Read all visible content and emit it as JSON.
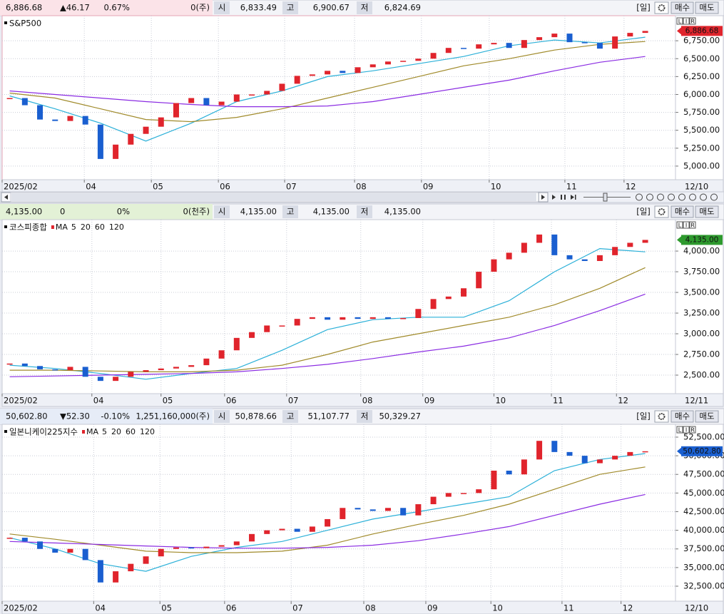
{
  "chart_data": [
    {
      "type": "candlestick",
      "title": "S&P500",
      "header": {
        "price": "6,886.68",
        "change": "▲46.17",
        "change_pct": "0.67%",
        "volume": "0(주)",
        "open_label": "시",
        "open": "6,833.49",
        "high_label": "고",
        "high": "6,900.67",
        "low_label": "저",
        "low": "6,824.69",
        "period": "[일]",
        "buy": "매수",
        "sell": "매도"
      },
      "quote_color": "#e0242c",
      "quote_background": "#fbe3e8",
      "current_background": "#e0242c",
      "scale_buttons": [
        "L",
        "I",
        "R"
      ],
      "end_date": "12/10",
      "up_color": "#e0242c",
      "down_color": "#1a5fd0",
      "closes": [
        5950,
        5850,
        5650,
        5630,
        5700,
        5580,
        5100,
        5300,
        5450,
        5550,
        5680,
        5880,
        5950,
        5850,
        5900,
        6000,
        6000,
        6050,
        6150,
        6260,
        6280,
        6330,
        6300,
        6380,
        6420,
        6460,
        6470,
        6500,
        6580,
        6650,
        6640,
        6700,
        6720,
        6650,
        6760,
        6800,
        6850,
        6730,
        6720,
        6640,
        6810,
        6860,
        6887
      ],
      "series": [
        {
          "color": "#2bb0d8",
          "x": [
            0,
            3,
            6,
            9,
            12,
            15,
            18,
            21,
            24,
            27,
            30,
            33,
            36,
            39,
            42
          ],
          "values": [
            5980,
            5800,
            5600,
            5350,
            5600,
            5900,
            6050,
            6250,
            6330,
            6430,
            6530,
            6680,
            6760,
            6720,
            6800
          ]
        },
        {
          "color": "#a08a2a",
          "x": [
            0,
            3,
            6,
            9,
            12,
            15,
            18,
            21,
            24,
            27,
            30,
            33,
            36,
            39,
            42
          ],
          "values": [
            6020,
            5950,
            5800,
            5650,
            5620,
            5680,
            5800,
            5950,
            6100,
            6250,
            6400,
            6500,
            6620,
            6700,
            6740
          ]
        },
        {
          "color": "#8a2be2",
          "x": [
            0,
            3,
            6,
            9,
            12,
            15,
            18,
            21,
            24,
            27,
            30,
            33,
            36,
            39,
            42
          ],
          "values": [
            6050,
            6000,
            5950,
            5900,
            5860,
            5830,
            5830,
            5840,
            5900,
            6000,
            6100,
            6200,
            6330,
            6450,
            6530
          ]
        }
      ],
      "xlim": [
        -0.5,
        44
      ],
      "xticks": [
        {
          "value": -0.5,
          "label": "2025/02"
        },
        {
          "value": 4.93,
          "label": "04"
        },
        {
          "value": 9.36,
          "label": "05"
        },
        {
          "value": 13.79,
          "label": "06"
        },
        {
          "value": 18.17,
          "label": "07"
        },
        {
          "value": 22.79,
          "label": "08"
        },
        {
          "value": 27.21,
          "label": "09"
        },
        {
          "value": 31.69,
          "label": "10"
        },
        {
          "value": 36.69,
          "label": "11"
        },
        {
          "value": 40.6,
          "label": "12"
        }
      ],
      "ylim": [
        4810,
        7100
      ],
      "yticks": [
        {
          "value": 5000,
          "label": "5,000.00"
        },
        {
          "value": 5250,
          "label": "5,250.00"
        },
        {
          "value": 5500,
          "label": "5,500.00"
        },
        {
          "value": 5750,
          "label": "5,750.00"
        },
        {
          "value": 6000,
          "label": "6,000.00"
        },
        {
          "value": 6250,
          "label": "6,250.00"
        },
        {
          "value": 6500,
          "label": "6,500.00"
        },
        {
          "value": 6750,
          "label": "6,750.00"
        }
      ],
      "grid": true
    },
    {
      "type": "candlestick",
      "title": "코스피종합",
      "header": {
        "price": "4,135.00",
        "change": "0",
        "change_pct": "0%",
        "volume": "0(천주)",
        "open_label": "시",
        "open": "4,135.00",
        "high_label": "고",
        "high": "4,135.00",
        "low_label": "저",
        "low": "4,135.00",
        "period": "[일]",
        "buy": "매수",
        "sell": "매도"
      },
      "quote_color": "#111111",
      "quote_background": "#e3f1d6",
      "current_background": "#2e9a2e",
      "scale_buttons": [
        "L",
        "I",
        "R"
      ],
      "end_date": "12/11",
      "legend_label": "MA",
      "up_color": "#e0242c",
      "down_color": "#1a5fd0",
      "closes": [
        2640,
        2610,
        2570,
        2560,
        2600,
        2480,
        2430,
        2480,
        2540,
        2560,
        2580,
        2600,
        2620,
        2700,
        2800,
        2950,
        3020,
        3100,
        3100,
        3180,
        3200,
        3170,
        3200,
        3180,
        3200,
        3180,
        3190,
        3300,
        3420,
        3450,
        3550,
        3750,
        3900,
        3980,
        4100,
        4200,
        3950,
        3900,
        3880,
        3950,
        4050,
        4100,
        4135
      ],
      "series": [
        {
          "name": "5",
          "color": "#e0242c"
        },
        {
          "name": "20",
          "color": "#2bb0d8",
          "x": [
            0,
            3,
            6,
            9,
            12,
            15,
            18,
            21,
            24,
            27,
            30,
            33,
            36,
            39,
            42
          ],
          "values": [
            2620,
            2580,
            2520,
            2450,
            2520,
            2580,
            2800,
            3050,
            3170,
            3200,
            3200,
            3400,
            3750,
            4030,
            3990
          ]
        },
        {
          "name": "60",
          "color": "#a08a2a",
          "x": [
            0,
            3,
            6,
            9,
            12,
            15,
            18,
            21,
            24,
            27,
            30,
            33,
            36,
            39,
            42
          ],
          "values": [
            2560,
            2560,
            2550,
            2540,
            2540,
            2560,
            2620,
            2750,
            2900,
            3000,
            3100,
            3200,
            3350,
            3550,
            3800
          ]
        },
        {
          "name": "120",
          "color": "#8a2be2",
          "x": [
            0,
            3,
            6,
            9,
            12,
            15,
            18,
            21,
            24,
            27,
            30,
            33,
            36,
            39,
            42
          ],
          "values": [
            2480,
            2490,
            2500,
            2510,
            2520,
            2540,
            2580,
            2630,
            2700,
            2780,
            2850,
            2950,
            3100,
            3280,
            3480
          ]
        }
      ],
      "xlim": [
        -0.5,
        44
      ],
      "xticks": [
        {
          "value": -0.5,
          "label": "2025/02"
        },
        {
          "value": 5.43,
          "label": "04"
        },
        {
          "value": 10.0,
          "label": "05"
        },
        {
          "value": 14.2,
          "label": "06"
        },
        {
          "value": 18.3,
          "label": "07"
        },
        {
          "value": 23.2,
          "label": "08"
        },
        {
          "value": 27.3,
          "label": "09"
        },
        {
          "value": 32.0,
          "label": "10"
        },
        {
          "value": 35.8,
          "label": "11"
        },
        {
          "value": 40.1,
          "label": "12"
        }
      ],
      "ylim": [
        2276,
        4380
      ],
      "yticks": [
        {
          "value": 2500,
          "label": "2,500.00"
        },
        {
          "value": 2750,
          "label": "2,750.00"
        },
        {
          "value": 3000,
          "label": "3,000.00"
        },
        {
          "value": 3250,
          "label": "3,250.00"
        },
        {
          "value": 3500,
          "label": "3,500.00"
        },
        {
          "value": 3750,
          "label": "3,750.00"
        },
        {
          "value": 4000,
          "label": "4,000.00"
        }
      ],
      "grid": true
    },
    {
      "type": "candlestick",
      "title": "일본니케이225지수",
      "header": {
        "price": "50,602.80",
        "change": "▼52.30",
        "change_pct": "-0.10%",
        "volume": "1,251,160,000(주)",
        "open_label": "시",
        "open": "50,878.66",
        "high_label": "고",
        "high": "51,107.77",
        "low_label": "저",
        "low": "50,329.27",
        "period": "[일]",
        "buy": "매수",
        "sell": "매도"
      },
      "quote_color": "#1a5fd0",
      "quote_background": "#e6ecf7",
      "current_background": "#1a5fd0",
      "scale_buttons": [
        "L",
        "I",
        "R"
      ],
      "end_date": "12/10",
      "legend_label": "MA",
      "up_color": "#e0242c",
      "down_color": "#1a5fd0",
      "closes": [
        39000,
        38500,
        37500,
        37000,
        37500,
        36000,
        33000,
        34500,
        35500,
        36500,
        37500,
        37700,
        37600,
        37800,
        38000,
        38500,
        39500,
        40000,
        40200,
        39800,
        40500,
        41500,
        43000,
        42800,
        42600,
        43000,
        42000,
        43500,
        44500,
        45000,
        45000,
        45500,
        48000,
        47500,
        49500,
        52000,
        50500,
        50000,
        49000,
        49500,
        50000,
        50500,
        50603
      ],
      "series": [
        {
          "name": "5",
          "color": "#e0242c"
        },
        {
          "name": "20",
          "color": "#2bb0d8",
          "x": [
            0,
            3,
            6,
            9,
            12,
            15,
            18,
            21,
            24,
            27,
            30,
            33,
            36,
            39,
            42
          ],
          "values": [
            39000,
            37500,
            35500,
            34500,
            36500,
            37700,
            38500,
            40000,
            41500,
            42500,
            43500,
            44500,
            48000,
            49500,
            50300
          ]
        },
        {
          "name": "60",
          "color": "#a08a2a",
          "x": [
            0,
            3,
            6,
            9,
            12,
            15,
            18,
            21,
            24,
            27,
            30,
            33,
            36,
            39,
            42
          ],
          "values": [
            39500,
            38800,
            38000,
            37200,
            37000,
            37000,
            37200,
            38000,
            39500,
            40800,
            42000,
            43500,
            45500,
            47500,
            48500
          ]
        },
        {
          "name": "120",
          "color": "#8a2be2",
          "x": [
            0,
            3,
            6,
            9,
            12,
            15,
            18,
            21,
            24,
            27,
            30,
            33,
            36,
            39,
            42
          ],
          "values": [
            38500,
            38300,
            38100,
            37900,
            37700,
            37600,
            37600,
            37700,
            38000,
            38600,
            39500,
            40500,
            42000,
            43500,
            44800
          ]
        }
      ],
      "xlim": [
        -0.5,
        44
      ],
      "xticks": [
        {
          "value": -0.5,
          "label": "2025/02"
        },
        {
          "value": 5.55,
          "label": "04"
        },
        {
          "value": 9.93,
          "label": "05"
        },
        {
          "value": 14.2,
          "label": "06"
        },
        {
          "value": 18.6,
          "label": "07"
        },
        {
          "value": 23.4,
          "label": "08"
        },
        {
          "value": 27.5,
          "label": "09"
        },
        {
          "value": 31.8,
          "label": "10"
        },
        {
          "value": 36.5,
          "label": "11"
        },
        {
          "value": 40.4,
          "label": "12"
        }
      ],
      "ylim": [
        30490,
        54220
      ],
      "yticks": [
        {
          "value": 32500,
          "label": "32,500.00"
        },
        {
          "value": 35000,
          "label": "35,000.00"
        },
        {
          "value": 37500,
          "label": "37,500.00"
        },
        {
          "value": 40000,
          "label": "40,000.00"
        },
        {
          "value": 42500,
          "label": "42,500.00"
        },
        {
          "value": 45000,
          "label": "45,000.00"
        },
        {
          "value": 47500,
          "label": "47,500.00"
        },
        {
          "value": 50000,
          "label": "50,000.00"
        },
        {
          "value": 52500,
          "label": "52,500.00"
        }
      ],
      "grid": true
    }
  ]
}
